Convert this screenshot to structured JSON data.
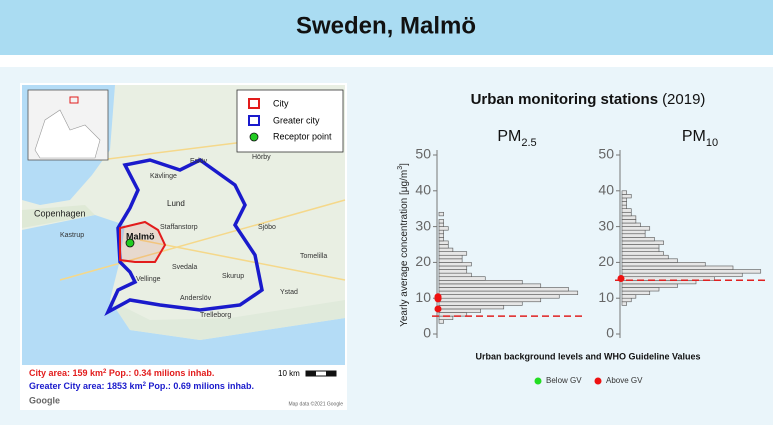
{
  "header": {
    "title": "Sweden, Malmö"
  },
  "map": {
    "legend": [
      "City",
      "Greater city",
      "Receptor point"
    ],
    "places": [
      "Copenhagen",
      "Lund",
      "Malmö",
      "Eslöv",
      "Hörby",
      "Kävlinge",
      "Kastrup",
      "Staffanstorp",
      "Sjöbo",
      "Tomelilla",
      "Svedala",
      "Skurup",
      "Ystad",
      "Vellinge",
      "Anderslöv",
      "Trelleborg"
    ],
    "city_info": [
      "City area: 159 km",
      "2",
      " Pop.: 0.34 milions inhab."
    ],
    "greater_info": [
      "Greater City area: 1853 km",
      "2",
      " Pop.: 0.69 milions inhab."
    ],
    "scale": "10 km",
    "logo": "Google",
    "credit": "Map data ©2021 Google"
  },
  "monitoring": {
    "title": "Urban monitoring stations",
    "year": "(2019)",
    "ylabel": [
      "Yearly average concentration [μg/m",
      "3",
      "]"
    ],
    "caption": "Urban background levels and WHO Guideline Values",
    "legend": [
      {
        "name": "Below GV",
        "color": "#22dd22"
      },
      {
        "name": "Above GV",
        "color": "#ee1111"
      }
    ]
  },
  "chart_data": [
    {
      "type": "histogram",
      "title": [
        "PM",
        "2.5"
      ],
      "bins": [
        3,
        4,
        5,
        6,
        7,
        8,
        9,
        10,
        11,
        12,
        13,
        14,
        15,
        16,
        17,
        18,
        19,
        20,
        21,
        22,
        23,
        24,
        25,
        26,
        27,
        28,
        29,
        30,
        31,
        32,
        33,
        34
      ],
      "counts": [
        1,
        3,
        6,
        9,
        14,
        18,
        22,
        26,
        30,
        28,
        22,
        18,
        10,
        7,
        6,
        6,
        7,
        5,
        5,
        6,
        3,
        2,
        2,
        1,
        1,
        1,
        2,
        1,
        1,
        0,
        1
      ],
      "color": "#e6e6e6",
      "xlim": [
        0,
        32
      ],
      "ylim": [
        0,
        50
      ],
      "yticks": [
        0,
        10,
        20,
        30,
        40,
        50
      ],
      "guideline": 5,
      "guideline_color": "#e02020",
      "stations": [
        10,
        10.4,
        9.8,
        7
      ],
      "station_color": "#ee1111"
    },
    {
      "type": "histogram",
      "title": [
        "PM",
        "10"
      ],
      "bins": [
        8,
        9,
        10,
        11,
        12,
        13,
        14,
        15,
        16,
        17,
        18,
        19,
        20,
        21,
        22,
        23,
        24,
        25,
        26,
        27,
        28,
        29,
        30,
        31,
        32,
        33,
        34,
        35,
        36,
        37,
        38,
        39,
        40
      ],
      "counts": [
        1,
        2,
        3,
        6,
        8,
        12,
        16,
        20,
        26,
        30,
        24,
        18,
        12,
        10,
        9,
        8,
        8,
        9,
        7,
        5,
        5,
        6,
        4,
        3,
        3,
        2,
        2,
        1,
        1,
        1,
        2,
        1
      ],
      "color": "#e6e6e6",
      "xlim": [
        0,
        32
      ],
      "ylim": [
        0,
        50
      ],
      "yticks": [
        0,
        10,
        20,
        30,
        40,
        50
      ],
      "guideline": 15,
      "guideline_color": "#e02020",
      "stations": [
        15.5
      ],
      "station_color": "#ee1111"
    }
  ]
}
